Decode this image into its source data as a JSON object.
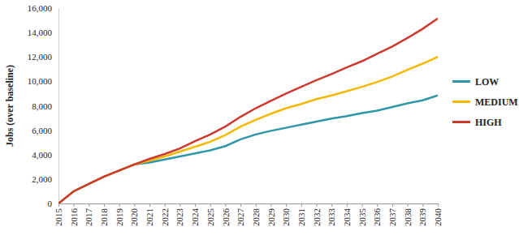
{
  "chart_data": {
    "type": "line",
    "y_label": "Jobs (over baseline)",
    "x": [
      2015,
      2016,
      2017,
      2018,
      2019,
      2020,
      2021,
      2022,
      2023,
      2024,
      2025,
      2026,
      2027,
      2028,
      2029,
      2030,
      2031,
      2032,
      2033,
      2034,
      2035,
      2036,
      2037,
      2038,
      2039,
      2040
    ],
    "xlim": [
      2015,
      2040
    ],
    "xticks": [
      2015,
      2016,
      2017,
      2018,
      2019,
      2020,
      2021,
      2022,
      2023,
      2024,
      2025,
      2026,
      2027,
      2028,
      2029,
      2030,
      2031,
      2032,
      2033,
      2034,
      2035,
      2036,
      2037,
      2038,
      2039,
      2040
    ],
    "ylim": [
      0,
      16000
    ],
    "yticks": [
      0,
      {
        "value": 2000,
        "label": "2,000"
      },
      {
        "value": 4000,
        "label": "4,000"
      },
      {
        "value": 6000,
        "label": "6,000"
      },
      {
        "value": 8000,
        "label": "8,000"
      },
      {
        "value": 10000,
        "label": "10,000"
      },
      {
        "value": 12000,
        "label": "12,000"
      },
      {
        "value": 14000,
        "label": "14,000"
      },
      {
        "value": 16000,
        "label": "16,000"
      }
    ],
    "grid": false,
    "legend": "right",
    "series": [
      {
        "name": "LOW",
        "color": "#2e96a8",
        "values": [
          0,
          1000,
          1600,
          2200,
          2700,
          3200,
          3350,
          3600,
          3850,
          4100,
          4350,
          4700,
          5250,
          5650,
          5950,
          6200,
          6450,
          6700,
          6950,
          7150,
          7400,
          7600,
          7900,
          8200,
          8450,
          8850
        ]
      },
      {
        "name": "MEDIUM",
        "color": "#f5b800",
        "values": [
          0,
          1000,
          1600,
          2200,
          2700,
          3200,
          3500,
          3850,
          4250,
          4650,
          5050,
          5600,
          6300,
          6850,
          7350,
          7800,
          8150,
          8550,
          8850,
          9200,
          9550,
          9950,
          10400,
          10950,
          11450,
          12000
        ]
      },
      {
        "name": "HIGH",
        "color": "#cc3a2f",
        "values": [
          0,
          1000,
          1600,
          2200,
          2700,
          3200,
          3650,
          4050,
          4500,
          5100,
          5650,
          6300,
          7100,
          7800,
          8400,
          9000,
          9550,
          10100,
          10600,
          11150,
          11650,
          12250,
          12850,
          13550,
          14300,
          15150
        ]
      }
    ]
  }
}
